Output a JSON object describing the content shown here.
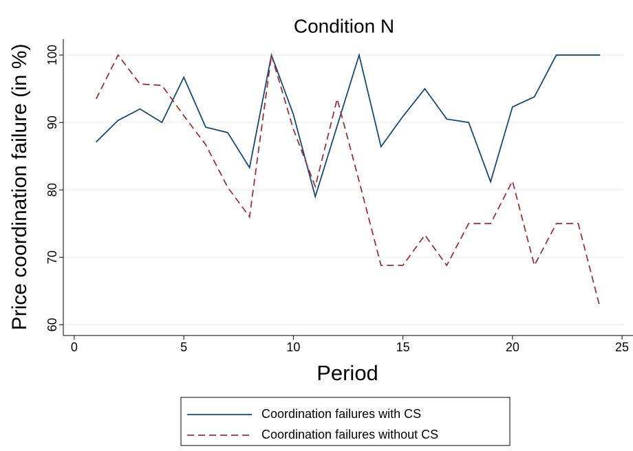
{
  "chart_data": {
    "type": "line",
    "title": "Condition N",
    "x_label": "Period",
    "y_label": "Price coordination failure (in %)",
    "x": [
      1,
      2,
      3,
      4,
      5,
      6,
      7,
      8,
      9,
      10,
      11,
      12,
      13,
      14,
      15,
      16,
      17,
      18,
      19,
      20,
      21,
      22,
      23,
      24
    ],
    "series": [
      {
        "name": "Coordination failures with CS",
        "color": "#1a476f",
        "dash": "none",
        "values": [
          87.1,
          90.3,
          92,
          90,
          96.7,
          89.3,
          88.5,
          83.3,
          100,
          91.2,
          79,
          89.5,
          100,
          86.4,
          90.9,
          95,
          90.5,
          90,
          81.2,
          92.3,
          93.8,
          100,
          100,
          100
        ]
      },
      {
        "name": "Coordination failures without CS",
        "color": "#90353b",
        "dash": "10,6",
        "values": [
          93.5,
          100,
          95.7,
          95.5,
          91,
          86.7,
          80.4,
          76,
          100,
          89,
          80.5,
          93.5,
          81.3,
          68.8,
          68.8,
          73.3,
          68.8,
          75,
          75,
          81.3,
          68.8,
          75,
          75,
          62.5
        ]
      }
    ],
    "xlim": [
      -0.5,
      25.5
    ],
    "xticks": [
      0,
      5,
      10,
      15,
      20,
      25
    ],
    "ylim": [
      58.4,
      102.35
    ],
    "yticks": [
      60,
      70,
      80,
      90,
      100
    ],
    "grid": true,
    "legend": "bottom"
  }
}
